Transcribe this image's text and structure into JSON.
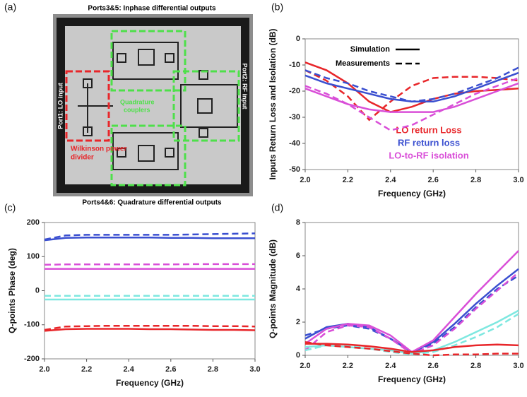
{
  "panel_labels": [
    "(a)",
    "(b)",
    "(c)",
    "(d)"
  ],
  "photo": {
    "top": "Ports3&5: Inphase differential outputs",
    "bottom": "Ports4&6: Quadrature differential outputs",
    "left": "Port1: LO input",
    "right": "Port2: RF input",
    "divider": [
      "Wilkinson power",
      "divider"
    ],
    "couplers": [
      "Quadrature",
      "couplers"
    ]
  },
  "chart_data": [
    {
      "type": "line",
      "xlabel": "Frequency (GHz)",
      "ylabel": "Inputs Return Loss and Isolation (dB)",
      "x": [
        2.0,
        2.1,
        2.2,
        2.3,
        2.4,
        2.5,
        2.6,
        2.7,
        2.8,
        2.9,
        3.0
      ],
      "xlim": [
        2,
        3
      ],
      "ylim": [
        -50,
        0
      ],
      "xticks": [
        {
          "value": 2,
          "label": "2.0"
        },
        {
          "value": 2.2,
          "label": "2.2"
        },
        {
          "value": 2.4,
          "label": "2.4"
        },
        {
          "value": 2.6,
          "label": "2.6"
        },
        {
          "value": 2.8,
          "label": "2.8"
        },
        {
          "value": 3,
          "label": "3.0"
        }
      ],
      "yticks": [
        0,
        -10,
        -20,
        -30,
        -40,
        -50
      ],
      "line_styles": [
        "Simulation",
        "Measurements"
      ],
      "series": [
        {
          "name": "LO return Loss",
          "color": "#e8262a",
          "simulation": [
            -9,
            -12,
            -17,
            -24,
            -28,
            -26,
            -23,
            -21,
            -20,
            -19.5,
            -19
          ],
          "measurement": [
            -12,
            -16,
            -22,
            -31,
            -24,
            -18,
            -15,
            -14.5,
            -14.5,
            -15,
            -16
          ]
        },
        {
          "name": "RF return loss",
          "color": "#3a4fd0",
          "simulation": [
            -14,
            -17,
            -19,
            -21,
            -23,
            -24,
            -24,
            -22,
            -19,
            -16,
            -13
          ],
          "measurement": [
            -12,
            -15,
            -17,
            -20,
            -22,
            -24,
            -23,
            -21,
            -18,
            -15,
            -11
          ]
        },
        {
          "name": "LO-to-RF isolation",
          "color": "#d94fd8",
          "simulation": [
            -19,
            -22,
            -25,
            -27,
            -28,
            -28,
            -28,
            -26,
            -23,
            -20,
            -17
          ],
          "measurement": [
            -18,
            -21,
            -25,
            -30,
            -35,
            -33,
            -29,
            -25,
            -21,
            -18,
            -15
          ]
        }
      ]
    },
    {
      "type": "line",
      "xlabel": "Frequency (GHz)",
      "ylabel": "Q-points Phase (deg)",
      "x": [
        2.0,
        2.1,
        2.2,
        2.3,
        2.4,
        2.5,
        2.6,
        2.7,
        2.8,
        2.9,
        3.0
      ],
      "xlim": [
        2,
        3
      ],
      "ylim": [
        -200,
        200
      ],
      "xticks": [
        {
          "value": 2,
          "label": "2.0"
        },
        {
          "value": 2.2,
          "label": "2.2"
        },
        {
          "value": 2.4,
          "label": "2.4"
        },
        {
          "value": 2.6,
          "label": "2.6"
        },
        {
          "value": 2.8,
          "label": "2.8"
        },
        {
          "value": 3,
          "label": "3.0"
        }
      ],
      "yticks": [
        200,
        100,
        0,
        -100,
        -200
      ],
      "series": [
        {
          "color": "#3a4fd0",
          "simulation": [
            148,
            155,
            156,
            156,
            156,
            156,
            155,
            155,
            154,
            154,
            154
          ],
          "measurement": [
            150,
            162,
            164,
            164,
            164,
            164,
            164,
            165,
            166,
            167,
            168
          ]
        },
        {
          "color": "#d94fd8",
          "simulation": [
            64,
            64,
            64,
            64,
            64,
            64,
            64,
            64,
            64,
            64,
            64
          ],
          "measurement": [
            76,
            77,
            77,
            77,
            77,
            77,
            77,
            78,
            78,
            78,
            78
          ]
        },
        {
          "color": "#7ee8e0",
          "simulation": [
            -26,
            -26,
            -26,
            -26,
            -26,
            -26,
            -26,
            -26,
            -26,
            -26,
            -26
          ],
          "measurement": [
            -15,
            -15,
            -15,
            -15,
            -15,
            -15,
            -15,
            -15,
            -15,
            -15,
            -15
          ]
        },
        {
          "color": "#e8262a",
          "simulation": [
            -118,
            -113,
            -112,
            -112,
            -112,
            -113,
            -113,
            -114,
            -115,
            -115,
            -116
          ],
          "measurement": [
            -115,
            -105,
            -104,
            -103,
            -103,
            -103,
            -103,
            -103,
            -104,
            -104,
            -105
          ]
        }
      ]
    },
    {
      "type": "line",
      "xlabel": "Frequency (GHz)",
      "ylabel": "Q-points Magnitude (dB)",
      "x": [
        2.0,
        2.1,
        2.2,
        2.3,
        2.4,
        2.5,
        2.6,
        2.7,
        2.8,
        2.9,
        3.0
      ],
      "xlim": [
        2,
        3
      ],
      "ylim": [
        0,
        8
      ],
      "xticks": [
        {
          "value": 2,
          "label": "2.0"
        },
        {
          "value": 2.2,
          "label": "2.2"
        },
        {
          "value": 2.4,
          "label": "2.4"
        },
        {
          "value": 2.6,
          "label": "2.6"
        },
        {
          "value": 2.8,
          "label": "2.8"
        },
        {
          "value": 3,
          "label": "3.0"
        }
      ],
      "yticks": [
        0,
        2,
        4,
        6,
        8
      ],
      "series": [
        {
          "color": "#3a4fd0",
          "simulation": [
            1.0,
            1.7,
            1.9,
            1.7,
            1.0,
            0.2,
            0.8,
            1.9,
            3.1,
            4.2,
            5.2
          ],
          "measurement": [
            1.2,
            1.6,
            1.8,
            1.6,
            1.0,
            0.2,
            0.7,
            1.7,
            2.9,
            4.0,
            4.8
          ]
        },
        {
          "color": "#d94fd8",
          "simulation": [
            0.7,
            1.6,
            1.9,
            1.8,
            1.2,
            0.2,
            0.9,
            2.3,
            3.7,
            5.0,
            6.3
          ],
          "measurement": [
            0.3,
            1.4,
            1.8,
            1.7,
            1.0,
            0.1,
            0.6,
            1.6,
            2.8,
            3.9,
            5.0
          ]
        },
        {
          "color": "#7ee8e0",
          "simulation": [
            0.5,
            0.6,
            0.5,
            0.4,
            0.3,
            0.1,
            0.3,
            0.8,
            1.4,
            2.0,
            2.7
          ],
          "measurement": [
            0.3,
            0.6,
            0.6,
            0.4,
            0.2,
            0.05,
            0.2,
            0.6,
            1.1,
            1.7,
            2.5
          ]
        },
        {
          "color": "#e8262a",
          "simulation": [
            0.7,
            0.7,
            0.65,
            0.55,
            0.4,
            0.2,
            0.3,
            0.5,
            0.6,
            0.65,
            0.6
          ],
          "measurement": [
            0.8,
            0.6,
            0.5,
            0.4,
            0.25,
            0.1,
            0,
            0.05,
            0.05,
            0.1,
            0.1
          ]
        }
      ]
    }
  ]
}
